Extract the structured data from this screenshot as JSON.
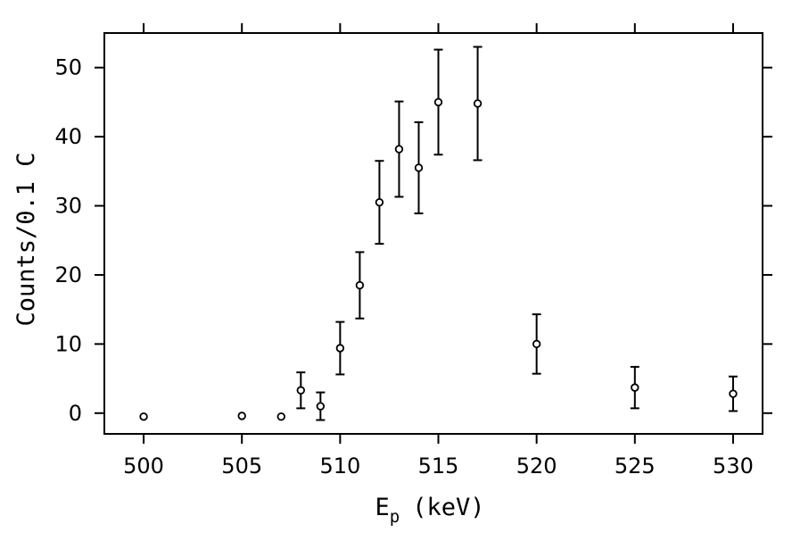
{
  "chart_data": {
    "type": "scatter",
    "title": "",
    "xlabel_main": "E",
    "xlabel_sub": "p",
    "xlabel_unit": "(keV)",
    "ylabel": "Counts/0.1 C",
    "xlim": [
      498,
      531.5
    ],
    "ylim": [
      -3,
      55
    ],
    "xticks": [
      500,
      505,
      510,
      515,
      520,
      525,
      530
    ],
    "yticks": [
      0,
      10,
      20,
      30,
      40,
      50
    ],
    "grid": false,
    "points": [
      {
        "x": 500,
        "y": -0.5,
        "err": 0
      },
      {
        "x": 505,
        "y": -0.4,
        "err": 0
      },
      {
        "x": 507,
        "y": -0.5,
        "err": 0
      },
      {
        "x": 508,
        "y": 3.3,
        "err": 2.6
      },
      {
        "x": 509,
        "y": 1.0,
        "err": 2.0
      },
      {
        "x": 510,
        "y": 9.4,
        "err": 3.8
      },
      {
        "x": 511,
        "y": 18.5,
        "err": 4.8
      },
      {
        "x": 512,
        "y": 30.5,
        "err": 6.0
      },
      {
        "x": 513,
        "y": 38.2,
        "err": 6.9
      },
      {
        "x": 514,
        "y": 35.5,
        "err": 6.6
      },
      {
        "x": 515,
        "y": 45.0,
        "err": 7.6
      },
      {
        "x": 517,
        "y": 44.8,
        "err": 8.2
      },
      {
        "x": 520,
        "y": 10.0,
        "err": 4.3
      },
      {
        "x": 525,
        "y": 3.7,
        "err": 3.0
      },
      {
        "x": 530,
        "y": 2.8,
        "err": 2.5
      }
    ]
  }
}
